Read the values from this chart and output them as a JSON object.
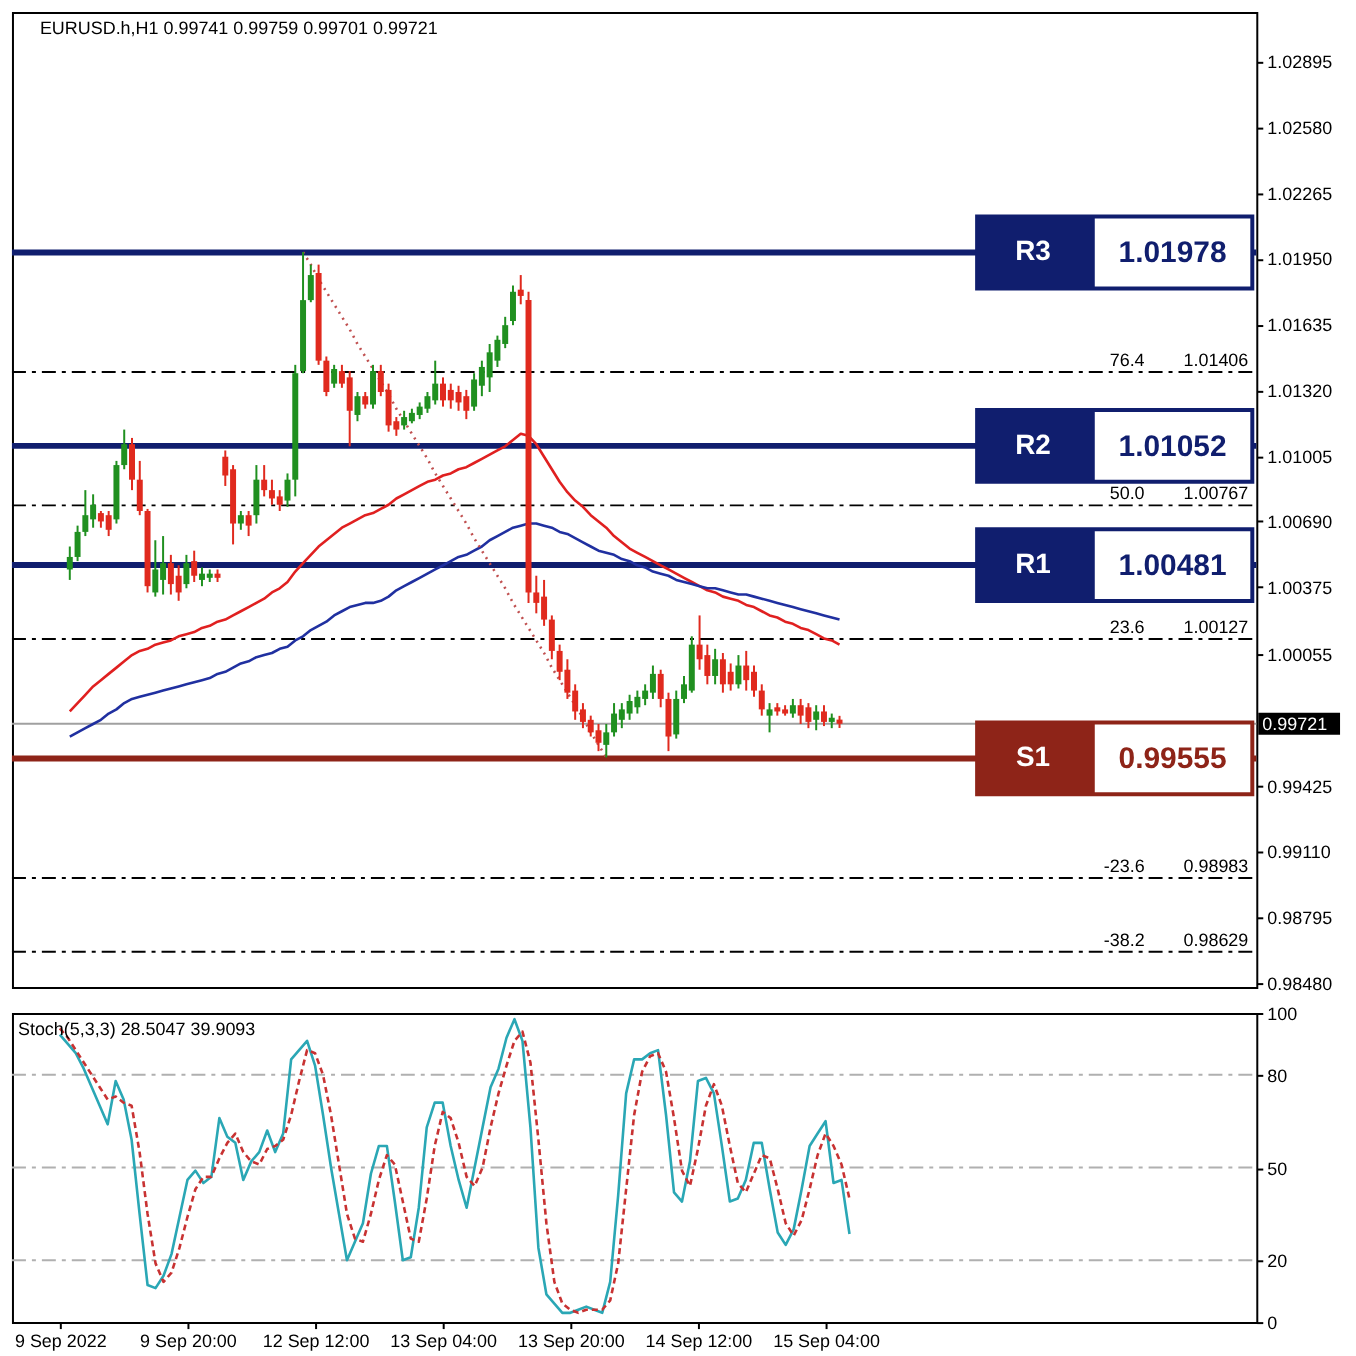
{
  "chart_data": [
    {
      "type": "candlestick",
      "title": "EURUSD.h,H1 0.99741 0.99759 0.99701 0.99721",
      "categories": [
        null,
        null,
        null,
        null,
        null,
        null,
        null,
        null,
        null,
        null,
        null,
        null,
        null,
        null,
        null,
        null,
        null,
        null,
        null,
        null,
        null,
        null,
        null,
        null,
        null,
        null,
        null,
        null,
        null,
        null,
        null,
        null,
        null,
        null,
        null,
        null,
        null,
        null,
        null,
        null,
        null,
        null,
        null,
        null,
        null,
        null,
        null,
        null,
        null,
        null,
        null,
        null,
        null,
        null,
        null,
        null,
        null,
        null,
        null,
        null,
        null,
        null,
        null,
        null,
        null,
        null,
        null,
        null,
        null,
        null,
        null,
        null,
        null,
        null,
        null,
        null,
        null,
        null,
        null,
        null,
        null,
        null,
        null,
        null,
        null,
        null,
        null,
        null,
        null,
        null,
        null,
        null,
        null,
        null,
        null,
        null,
        null,
        null,
        null,
        null
      ],
      "ohlc": [
        [
          1.0046,
          1.0057,
          1.0041,
          1.0052
        ],
        [
          1.0052,
          1.0067,
          1.005,
          1.0064
        ],
        [
          1.0064,
          1.0084,
          1.0062,
          1.0072
        ],
        [
          1.007,
          1.0082,
          1.0066,
          1.0077
        ],
        [
          1.0073,
          1.0074,
          1.0066,
          1.0069
        ],
        [
          1.0072,
          1.0074,
          1.0062,
          1.0065
        ],
        [
          1.007,
          1.0098,
          1.0068,
          1.0096
        ],
        [
          1.0096,
          1.0113,
          1.0094,
          1.0106
        ],
        [
          1.0106,
          1.0109,
          1.0084,
          1.0089
        ],
        [
          1.0089,
          1.0098,
          1.0072,
          1.0074
        ],
        [
          1.0074,
          1.0075,
          1.0035,
          1.0038
        ],
        [
          1.0035,
          1.006,
          1.0033,
          1.0046
        ],
        [
          1.0041,
          1.0062,
          1.0034,
          1.0049
        ],
        [
          1.0049,
          1.0053,
          1.0034,
          1.0039
        ],
        [
          1.0043,
          1.0048,
          1.0031,
          1.0035
        ],
        [
          1.0039,
          1.0053,
          1.0037,
          1.0049
        ],
        [
          1.005,
          1.0055,
          1.004,
          1.0043
        ],
        [
          1.0041,
          1.0047,
          1.0038,
          1.0044
        ],
        [
          1.0042,
          1.0046,
          1.004,
          1.0044
        ],
        [
          1.0044,
          1.0046,
          1.004,
          1.0042
        ],
        [
          1.01,
          1.0103,
          1.0086,
          1.0091
        ],
        [
          1.0094,
          1.0096,
          1.0058,
          1.0068
        ],
        [
          1.0068,
          1.0074,
          1.0065,
          1.0072
        ],
        [
          1.0072,
          1.0074,
          1.0062,
          1.0067
        ],
        [
          1.0072,
          1.0096,
          1.0068,
          1.0089
        ],
        [
          1.0089,
          1.0096,
          1.0081,
          1.0084
        ],
        [
          1.0084,
          1.0089,
          1.0077,
          1.008
        ],
        [
          1.0081,
          1.0084,
          1.0074,
          1.0077
        ],
        [
          1.0079,
          1.0092,
          1.0076,
          1.0089
        ],
        [
          1.0089,
          1.0144,
          1.0081,
          1.014
        ],
        [
          1.0141,
          1.0198,
          1.014,
          1.0175
        ],
        [
          1.0175,
          1.0192,
          1.0174,
          1.0187
        ],
        [
          1.0188,
          1.0192,
          1.0144,
          1.0146
        ],
        [
          1.0146,
          1.0148,
          1.0129,
          1.0131
        ],
        [
          1.0135,
          1.0144,
          1.0133,
          1.0142
        ],
        [
          1.0141,
          1.0144,
          1.0133,
          1.0135
        ],
        [
          1.0138,
          1.0141,
          1.0105,
          1.0122
        ],
        [
          1.012,
          1.0131,
          1.0117,
          1.0129
        ],
        [
          1.0129,
          1.0131,
          1.0123,
          1.0125
        ],
        [
          1.0125,
          1.0144,
          1.0123,
          1.0141
        ],
        [
          1.0141,
          1.0144,
          1.0129,
          1.0131
        ],
        [
          1.0132,
          1.0135,
          1.0112,
          1.0115
        ],
        [
          1.0117,
          1.0119,
          1.011,
          1.0113
        ],
        [
          1.0115,
          1.0122,
          1.0113,
          1.0119
        ],
        [
          1.0117,
          1.0123,
          1.0116,
          1.0121
        ],
        [
          1.012,
          1.0126,
          1.0118,
          1.0124
        ],
        [
          1.0123,
          1.0131,
          1.0121,
          1.0129
        ],
        [
          1.0127,
          1.0146,
          1.0125,
          1.0135
        ],
        [
          1.0135,
          1.0138,
          1.0124,
          1.0127
        ],
        [
          1.0132,
          1.0135,
          1.0123,
          1.0127
        ],
        [
          1.0131,
          1.0134,
          1.0122,
          1.0126
        ],
        [
          1.0129,
          1.0132,
          1.0118,
          1.0122
        ],
        [
          1.0124,
          1.014,
          1.0122,
          1.0137
        ],
        [
          1.0134,
          1.0146,
          1.0129,
          1.0143
        ],
        [
          1.0138,
          1.0154,
          1.0131,
          1.015
        ],
        [
          1.0146,
          1.0158,
          1.0143,
          1.0156
        ],
        [
          1.0154,
          1.0167,
          1.0152,
          1.0163
        ],
        [
          1.0165,
          1.0182,
          1.0163,
          1.0179
        ],
        [
          1.018,
          1.0187,
          1.0173,
          1.0177
        ],
        [
          1.0175,
          1.0179,
          1.003,
          1.0035
        ],
        [
          1.0035,
          1.0043,
          1.0025,
          1.003
        ],
        [
          1.0033,
          1.0041,
          1.0019,
          1.0022
        ],
        [
          1.0022,
          1.0024,
          1.0003,
          1.0007
        ],
        [
          1.0007,
          1.001,
          0.9993,
          0.9997
        ],
        [
          0.9998,
          1.0003,
          0.9984,
          0.9987
        ],
        [
          0.9988,
          0.9991,
          0.9974,
          0.9978
        ],
        [
          0.9979,
          0.9982,
          0.997,
          0.9973
        ],
        [
          0.9974,
          0.9976,
          0.9966,
          0.9968
        ],
        [
          0.9969,
          0.9972,
          0.9959,
          0.9963
        ],
        [
          0.9962,
          0.9972,
          0.9956,
          0.9968
        ],
        [
          0.9968,
          0.9982,
          0.9966,
          0.9977
        ],
        [
          0.9974,
          0.9982,
          0.997,
          0.9979
        ],
        [
          0.9977,
          0.9986,
          0.9974,
          0.9983
        ],
        [
          0.998,
          0.9988,
          0.9977,
          0.9985
        ],
        [
          0.9984,
          0.9991,
          0.9981,
          0.9988
        ],
        [
          0.9987,
          1.0,
          0.9984,
          0.9996
        ],
        [
          0.9996,
          0.9998,
          0.998,
          0.9984
        ],
        [
          0.9984,
          0.9987,
          0.9959,
          0.9966
        ],
        [
          0.9967,
          0.9988,
          0.9965,
          0.9984
        ],
        [
          0.9984,
          0.9995,
          0.9982,
          0.9991
        ],
        [
          0.9988,
          1.0014,
          0.9987,
          1.001
        ],
        [
          1.001,
          1.0024,
          0.9998,
          1.0003
        ],
        [
          1.0005,
          1.001,
          0.9991,
          0.9995
        ],
        [
          0.9995,
          1.0008,
          0.9991,
          1.0003
        ],
        [
          1.0003,
          1.0006,
          0.9987,
          0.9991
        ],
        [
          0.9997,
          1.0001,
          0.9988,
          0.9991
        ],
        [
          0.9991,
          1.0005,
          0.9989,
          1.0
        ],
        [
          1.0,
          1.0007,
          0.9988,
          0.9993
        ],
        [
          0.9997,
          1.0,
          0.9985,
          0.9988
        ],
        [
          0.9988,
          0.9991,
          0.9976,
          0.9979
        ],
        [
          0.9976,
          0.9982,
          0.9968,
          0.9979
        ],
        [
          0.998,
          0.9982,
          0.9976,
          0.9978
        ],
        [
          0.9979,
          0.9981,
          0.9976,
          0.9977
        ],
        [
          0.9977,
          0.9984,
          0.9975,
          0.9981
        ],
        [
          0.9981,
          0.9984,
          0.9972,
          0.9976
        ],
        [
          0.998,
          0.9982,
          0.997,
          0.9973
        ],
        [
          0.9974,
          0.9981,
          0.9969,
          0.9978
        ],
        [
          0.9978,
          0.9981,
          0.9971,
          0.9973
        ],
        [
          0.9973,
          0.9977,
          0.997,
          0.9975
        ],
        [
          0.99741,
          0.99759,
          0.99701,
          0.99721
        ]
      ],
      "colors": [
        "#209020",
        "#209020",
        "#209020",
        "#209020",
        "#e02a1e",
        "#e02a1e",
        "#209020",
        "#209020",
        "#e02a1e",
        "#e02a1e",
        "#e02a1e",
        "#209020",
        "#209020",
        "#e02a1e",
        "#e02a1e",
        "#209020",
        "#e02a1e",
        "#209020",
        "#209020",
        "#e02a1e",
        "#e02a1e",
        "#e02a1e",
        "#209020",
        "#e02a1e",
        "#209020",
        "#e02a1e",
        "#e02a1e",
        "#e02a1e",
        "#209020",
        "#209020",
        "#209020",
        "#209020",
        "#e02a1e",
        "#e02a1e",
        "#209020",
        "#e02a1e",
        "#e02a1e",
        "#209020",
        "#e02a1e",
        "#209020",
        "#e02a1e",
        "#e02a1e",
        "#e02a1e",
        "#209020",
        "#209020",
        "#209020",
        "#209020",
        "#209020",
        "#e02a1e",
        "#e02a1e",
        "#e02a1e",
        "#e02a1e",
        "#209020",
        "#209020",
        "#209020",
        "#209020",
        "#209020",
        "#209020",
        "#e02a1e",
        "#e02a1e",
        "#e02a1e",
        "#e02a1e",
        "#e02a1e",
        "#e02a1e",
        "#e02a1e",
        "#e02a1e",
        "#e02a1e",
        "#e02a1e",
        "#e02a1e",
        "#209020",
        "#209020",
        "#209020",
        "#209020",
        "#209020",
        "#209020",
        "#209020",
        "#e02a1e",
        "#e02a1e",
        "#209020",
        "#209020",
        "#209020",
        "#e02a1e",
        "#e02a1e",
        "#209020",
        "#e02a1e",
        "#e02a1e",
        "#209020",
        "#e02a1e",
        "#e02a1e",
        "#e02a1e",
        "#209020",
        "#e02a1e",
        "#e02a1e",
        "#209020",
        "#e02a1e",
        "#e02a1e",
        "#209020",
        "#e02a1e",
        "#209020",
        "#e02a1e"
      ],
      "series": [
        {
          "type": "line",
          "color": "#e02020",
          "values": [
            0.9978,
            0.9982,
            0.9986,
            0.999,
            0.9993,
            0.9996,
            0.9999,
            1.0002,
            1.0005,
            1.0007,
            1.0008,
            1.001,
            1.0011,
            1.0012,
            1.0014,
            1.0015,
            1.0016,
            1.0018,
            1.0019,
            1.0021,
            1.0022,
            1.0024,
            1.0026,
            1.0028,
            1.003,
            1.0032,
            1.0035,
            1.0037,
            1.004,
            1.0045,
            1.0049,
            1.0053,
            1.0057,
            1.006,
            1.0063,
            1.0066,
            1.0068,
            1.007,
            1.0072,
            1.0073,
            1.0075,
            1.0077,
            1.008,
            1.0082,
            1.0084,
            1.0086,
            1.0088,
            1.0089,
            1.0091,
            1.0092,
            1.0094,
            1.0095,
            1.0097,
            1.0099,
            1.0101,
            1.0103,
            1.0105,
            1.0108,
            1.0111,
            1.011,
            1.0106,
            1.01,
            1.0094,
            1.0088,
            1.0083,
            1.0079,
            1.0076,
            1.0072,
            1.0069,
            1.0066,
            1.0062,
            1.0059,
            1.0056,
            1.0054,
            1.0052,
            1.005,
            1.0048,
            1.0046,
            1.0044,
            1.0042,
            1.004,
            1.0038,
            1.0036,
            1.0035,
            1.0033,
            1.0032,
            1.0031,
            1.0029,
            1.0028,
            1.0026,
            1.0024,
            1.0023,
            1.0021,
            1.002,
            1.0018,
            1.0017,
            1.0015,
            1.0013,
            1.0012,
            1.001
          ]
        },
        {
          "type": "line",
          "color": "#2030a0",
          "values": [
            0.9966,
            0.9968,
            0.997,
            0.9972,
            0.9974,
            0.9977,
            0.9979,
            0.9982,
            0.9984,
            0.9985,
            0.9986,
            0.9987,
            0.9988,
            0.9989,
            0.999,
            0.9991,
            0.9992,
            0.9993,
            0.9994,
            0.9996,
            0.9997,
            0.9999,
            1.0001,
            1.0002,
            1.0004,
            1.0005,
            1.0006,
            1.0008,
            1.0009,
            1.0012,
            1.0014,
            1.0017,
            1.0019,
            1.0021,
            1.0024,
            1.0026,
            1.0028,
            1.0029,
            1.003,
            1.003,
            1.0031,
            1.0033,
            1.0036,
            1.0038,
            1.004,
            1.0042,
            1.0044,
            1.0046,
            1.0048,
            1.005,
            1.0052,
            1.0053,
            1.0055,
            1.0057,
            1.006,
            1.0062,
            1.0064,
            1.0066,
            1.0067,
            1.0068,
            1.0068,
            1.0067,
            1.0066,
            1.0064,
            1.0063,
            1.0061,
            1.0059,
            1.0057,
            1.0055,
            1.0054,
            1.0053,
            1.0051,
            1.005,
            1.0048,
            1.0047,
            1.0045,
            1.0044,
            1.0043,
            1.0041,
            1.004,
            1.0039,
            1.0038,
            1.0037,
            1.0037,
            1.0036,
            1.0035,
            1.0034,
            1.0034,
            1.0033,
            1.0032,
            1.0031,
            1.003,
            1.0029,
            1.0028,
            1.0027,
            1.0026,
            1.0025,
            1.0024,
            1.0023,
            1.0022
          ]
        },
        {
          "type": "line",
          "color": "#c05050",
          "line_style": "dotted",
          "values": [
            null,
            null,
            null,
            null,
            null,
            null,
            null,
            null,
            null,
            null,
            null,
            null,
            null,
            null,
            null,
            null,
            null,
            null,
            null,
            null,
            null,
            null,
            null,
            null,
            null,
            null,
            null,
            null,
            null,
            null,
            1.0198,
            1.0192,
            1.0185,
            1.0179,
            1.0173,
            1.0167,
            1.0161,
            1.0154,
            1.0148,
            1.0142,
            1.0136,
            1.013,
            1.0123,
            1.0117,
            1.0111,
            1.0105,
            1.0099,
            1.0092,
            1.0086,
            1.008,
            1.0074,
            1.0068,
            1.0061,
            1.0055,
            1.0049,
            1.0043,
            1.0037,
            1.003,
            1.0024,
            1.0018,
            1.0012,
            1.0006,
            0.9999,
            0.9993,
            0.9987,
            0.9981,
            0.9975,
            0.9968,
            0.9962,
            0.9956,
            null,
            null,
            null,
            null,
            null,
            null,
            null,
            null,
            null,
            null,
            null,
            null,
            null,
            null,
            null,
            null,
            null,
            null,
            null,
            null,
            null,
            null,
            null,
            null,
            null,
            null,
            null,
            null,
            null,
            null
          ]
        }
      ],
      "ylim": [
        0.9846,
        1.0313
      ],
      "yticks": [
        1.02895,
        {
          "value": 1.0258,
          "label": "1.02580"
        },
        1.02265,
        {
          "value": 1.0195,
          "label": "1.01950"
        },
        1.01635,
        {
          "value": 1.0132,
          "label": "1.01320"
        },
        1.01005,
        {
          "value": 1.0069,
          "label": "1.00690"
        },
        1.00375,
        1.00055,
        0.99425,
        {
          "value": 0.9911,
          "label": "0.99110"
        },
        0.98795,
        {
          "value": 0.9848,
          "label": "0.98480"
        }
      ],
      "tick_labels": "y",
      "ref_lines": [
        {
          "axis": "y",
          "value": 0.99721,
          "label": "0.99721",
          "color": "#a0a0a0"
        },
        {
          "axis": "y",
          "value": 1.01406,
          "label": "1.01406",
          "color": "#000000",
          "line_style": "dashed"
        },
        {
          "axis": "y",
          "value": 1.00767,
          "label": "1.00767",
          "color": "#000000",
          "line_style": "dashed"
        },
        {
          "axis": "y",
          "value": 1.00127,
          "label": "1.00127",
          "color": "#000000",
          "line_style": "dashed"
        },
        {
          "axis": "y",
          "value": 0.98983,
          "label": "0.98983",
          "color": "#000000",
          "line_style": "dashed"
        },
        {
          "axis": "y",
          "value": 0.98629,
          "label": "0.98629",
          "color": "#000000",
          "line_style": "dashed"
        },
        {
          "axis": "y",
          "value": 1.01978,
          "label": "1.01978",
          "color": "#101e6e"
        },
        {
          "axis": "y",
          "value": 1.01052,
          "label": "1.01052",
          "color": "#101e6e"
        },
        {
          "axis": "y",
          "value": 1.00481,
          "label": "1.00481",
          "color": "#101e6e"
        },
        {
          "axis": "y",
          "value": 0.99555,
          "label": "0.99555",
          "color": "#8e2418"
        }
      ],
      "annotations": [
        {
          "text": "76.4",
          "y": 1.01406
        },
        {
          "text": "50.0",
          "y": 1.00767
        },
        {
          "text": "23.6",
          "y": 1.00127
        },
        {
          "text": "-23.6",
          "y": 0.98983
        },
        {
          "text": "-38.2",
          "y": 0.98629
        },
        {
          "text": "R3",
          "y": 1.01978
        },
        {
          "text": "R2",
          "y": 1.01052
        },
        {
          "text": "R1",
          "y": 1.00481
        },
        {
          "text": "S1",
          "y": 0.99555
        }
      ]
    },
    {
      "type": "line",
      "title": "Stoch(5,3,3) 28.5047 39.9093",
      "categories": [
        "9 Sep 2022",
        null,
        null,
        null,
        null,
        null,
        null,
        null,
        null,
        null,
        null,
        null,
        null,
        null,
        null,
        null,
        "9 Sep 20:00",
        null,
        null,
        null,
        null,
        null,
        null,
        null,
        null,
        null,
        null,
        null,
        null,
        null,
        null,
        null,
        "12 Sep 12:00",
        null,
        null,
        null,
        null,
        null,
        null,
        null,
        null,
        null,
        null,
        null,
        null,
        null,
        null,
        null,
        "13 Sep 04:00",
        null,
        null,
        null,
        null,
        null,
        null,
        null,
        null,
        null,
        null,
        null,
        null,
        null,
        null,
        null,
        "13 Sep 20:00",
        null,
        null,
        null,
        null,
        null,
        null,
        null,
        null,
        null,
        null,
        null,
        null,
        null,
        null,
        null,
        "14 Sep 12:00",
        null,
        null,
        null,
        null,
        null,
        null,
        null,
        null,
        null,
        null,
        null,
        null,
        null,
        null,
        null,
        "15 Sep 04:00",
        null,
        null,
        null
      ],
      "series": [
        {
          "color": "#2aa7b5",
          "line_style": "solid",
          "values": [
            93,
            90,
            87,
            82,
            76,
            70,
            64,
            78,
            72,
            59,
            35,
            12,
            11,
            15,
            22,
            34,
            46,
            49,
            45,
            47,
            66,
            60,
            58,
            46,
            52,
            55,
            62,
            55,
            61,
            85,
            88,
            91,
            83,
            67,
            50,
            35,
            20,
            26,
            32,
            48,
            57,
            57,
            39,
            20,
            21,
            37,
            63,
            71,
            71,
            57,
            46,
            37,
            50,
            63,
            76,
            82,
            92,
            98,
            91,
            63,
            24,
            9,
            6,
            3,
            3,
            4,
            5,
            4,
            3,
            13,
            41,
            74,
            85,
            85,
            87,
            88,
            67,
            42,
            39,
            52,
            78,
            79,
            74,
            57,
            39,
            40,
            46,
            58,
            58,
            43,
            29,
            25,
            30,
            43,
            57,
            61,
            65,
            45,
            46,
            28.5
          ]
        },
        {
          "color": "#c83232",
          "line_style": "dashed",
          "values": [
            95,
            92,
            88,
            84,
            80,
            76,
            72,
            73,
            71,
            70,
            55,
            35,
            19,
            13,
            16,
            24,
            34,
            43,
            47,
            47,
            53,
            58,
            61,
            55,
            52,
            51,
            56,
            57,
            59,
            67,
            78,
            88,
            87,
            80,
            67,
            51,
            35,
            27,
            26,
            35,
            46,
            54,
            51,
            39,
            27,
            26,
            40,
            57,
            68,
            66,
            58,
            47,
            44,
            50,
            63,
            74,
            83,
            91,
            94,
            84,
            59,
            32,
            13,
            6,
            4,
            3,
            4,
            4,
            4,
            7,
            19,
            43,
            67,
            81,
            86,
            87,
            81,
            66,
            49,
            44,
            56,
            70,
            77,
            70,
            57,
            45,
            42,
            48,
            54,
            53,
            43,
            32,
            28,
            33,
            43,
            54,
            61,
            57,
            51,
            39.9
          ]
        }
      ],
      "ylim": [
        0,
        100
      ],
      "yticks": [
        0,
        20,
        50,
        80,
        100
      ],
      "ref_lines": [
        {
          "axis": "y",
          "value": 20,
          "color": "#b0b0b0",
          "line_style": "dashed"
        },
        {
          "axis": "y",
          "value": 50,
          "color": "#b0b0b0",
          "line_style": "dashed"
        },
        {
          "axis": "y",
          "value": 80,
          "color": "#b0b0b0",
          "line_style": "dashed"
        }
      ]
    }
  ]
}
